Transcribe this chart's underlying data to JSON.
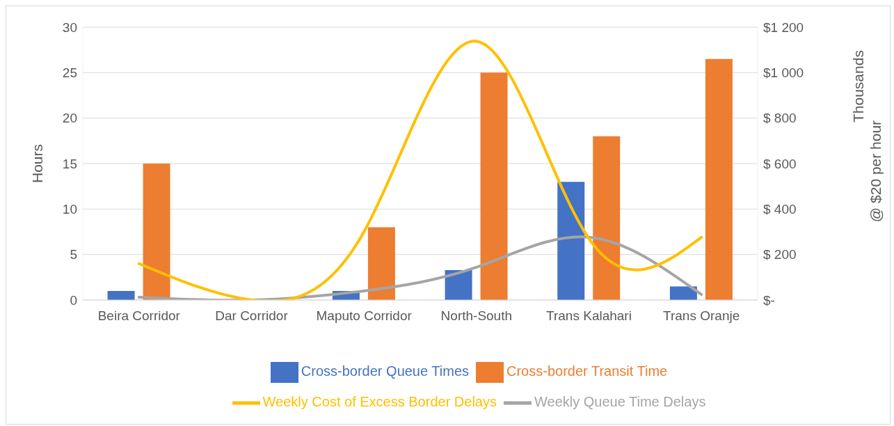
{
  "chart_data": {
    "type": "bar",
    "ylabel": "Hours",
    "y2label": "@ $20 per hour",
    "annotations": [
      "Thousands"
    ],
    "categories": [
      "Beira Corridor",
      "Dar Corridor",
      "Maputo Corridor",
      "North-South",
      "Trans Kalahari",
      "Trans Oranje"
    ],
    "series": [
      {
        "name": "Cross-border Queue Times",
        "color": "#4472c4",
        "values": [
          1,
          0,
          1,
          3.3,
          13,
          1.5
        ]
      },
      {
        "name": "Cross-border Transit Time",
        "color": "#ed7d31",
        "values": [
          15,
          0,
          8,
          25,
          18,
          26.5
        ]
      },
      {
        "name": "Weekly Queue Time Delays",
        "type": "line",
        "color": "#a5a5a5",
        "values": [
          0.3,
          0,
          1,
          3.6,
          6.9,
          0.6
        ]
      },
      {
        "name": "Weekly Cost of Excess Border Delays",
        "type": "line",
        "axis": "y2",
        "color": "#ffc000",
        "values": [
          160,
          0,
          300,
          1138,
          270,
          276
        ]
      }
    ],
    "ylim": [
      0,
      30
    ],
    "yticks": [
      0,
      5,
      10,
      15,
      20,
      25,
      30
    ],
    "y2lim": [
      0,
      1200
    ],
    "y2ticks": [
      {
        "value": 0,
        "label": "$-"
      },
      {
        "value": 200,
        "label": "$ 200"
      },
      {
        "value": 400,
        "label": "$ 400"
      },
      {
        "value": 600,
        "label": "$ 600"
      },
      {
        "value": 800,
        "label": "$ 800"
      },
      {
        "value": 1000,
        "label": "$1 000"
      },
      {
        "value": 1200,
        "label": "$1 200"
      }
    ],
    "grid": "y",
    "legend": "bottom",
    "marker": "none"
  }
}
